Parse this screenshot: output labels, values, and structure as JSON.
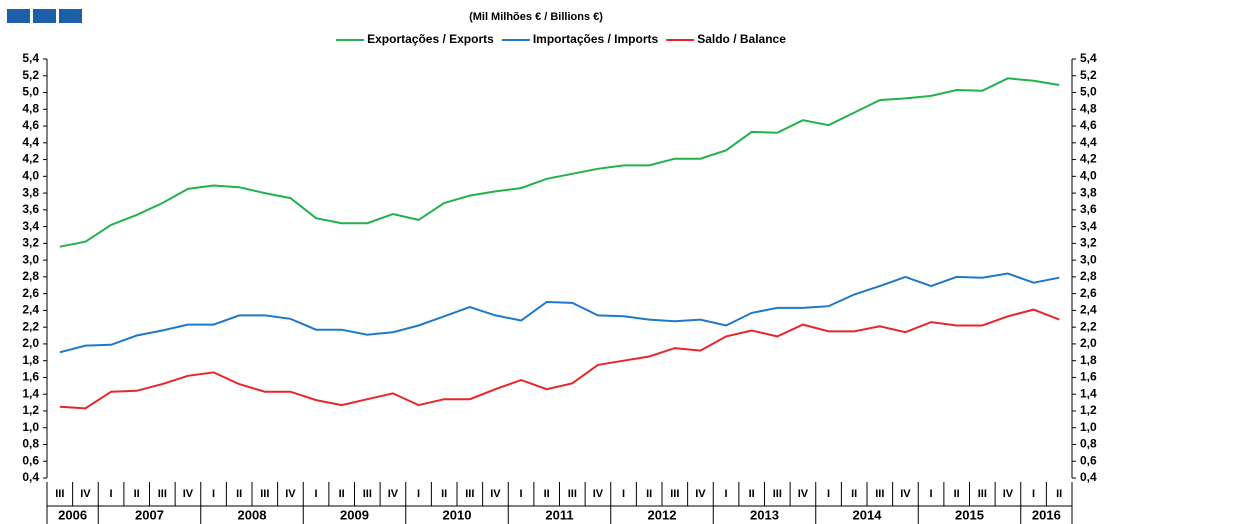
{
  "chart_data": {
    "type": "line",
    "title": "(Mil Milhões € / Billions €)",
    "x": [
      "III",
      "IV",
      "I",
      "II",
      "III",
      "IV",
      "I",
      "II",
      "III",
      "IV",
      "I",
      "II",
      "III",
      "IV",
      "I",
      "II",
      "III",
      "IV",
      "I",
      "II",
      "III",
      "IV",
      "I",
      "II",
      "III",
      "IV",
      "I",
      "II",
      "III",
      "IV",
      "I",
      "II",
      "III",
      "IV",
      "I",
      "II",
      "III",
      "IV",
      "I",
      "II"
    ],
    "years": [
      "2006",
      "2007",
      "2008",
      "2009",
      "2010",
      "2011",
      "2012",
      "2013",
      "2014",
      "2015",
      "2016"
    ],
    "series": [
      {
        "name": "Exportações / Exports",
        "color": "#22b24c",
        "values": [
          3.16,
          3.22,
          3.42,
          3.54,
          3.68,
          3.85,
          3.89,
          3.87,
          3.8,
          3.74,
          3.5,
          3.44,
          3.44,
          3.55,
          3.48,
          3.68,
          3.77,
          3.82,
          3.86,
          3.97,
          4.03,
          4.09,
          4.13,
          4.13,
          4.21,
          4.21,
          4.31,
          4.53,
          4.52,
          4.67,
          4.61,
          4.76,
          4.91,
          4.93,
          4.96,
          5.03,
          5.02,
          5.17,
          5.14,
          5.09
        ]
      },
      {
        "name": "Importações / Imports",
        "color": "#1f78c8",
        "values": [
          1.9,
          1.98,
          1.99,
          2.1,
          2.16,
          2.23,
          2.23,
          2.34,
          2.34,
          2.3,
          2.17,
          2.17,
          2.11,
          2.14,
          2.22,
          2.33,
          2.44,
          2.34,
          2.28,
          2.5,
          2.49,
          2.34,
          2.33,
          2.29,
          2.27,
          2.29,
          2.22,
          2.37,
          2.43,
          2.43,
          2.45,
          2.59,
          2.69,
          2.8,
          2.69,
          2.8,
          2.79,
          2.84,
          2.73,
          2.79
        ]
      },
      {
        "name": "Saldo / Balance",
        "color": "#e8262a",
        "values": [
          1.25,
          1.23,
          1.43,
          1.44,
          1.52,
          1.62,
          1.66,
          1.52,
          1.43,
          1.43,
          1.33,
          1.27,
          1.34,
          1.41,
          1.27,
          1.34,
          1.34,
          1.46,
          1.57,
          1.46,
          1.53,
          1.75,
          1.8,
          1.85,
          1.95,
          1.92,
          2.09,
          2.16,
          2.09,
          2.23,
          2.15,
          2.15,
          2.21,
          2.14,
          2.26,
          2.22,
          2.22,
          2.33,
          2.41,
          2.29
        ]
      }
    ],
    "ylim": [
      0.4,
      5.4
    ],
    "yticks": [
      {
        "value": 0.4,
        "label": "0,4"
      },
      {
        "value": 0.6,
        "label": "0,6"
      },
      {
        "value": 0.8,
        "label": "0,8"
      },
      {
        "value": 1.0,
        "label": "1,0"
      },
      {
        "value": 1.2,
        "label": "1,2"
      },
      {
        "value": 1.4,
        "label": "1,4"
      },
      {
        "value": 1.6,
        "label": "1,6"
      },
      {
        "value": 1.8,
        "label": "1,8"
      },
      {
        "value": 2.0,
        "label": "2,0"
      },
      {
        "value": 2.2,
        "label": "2,2"
      },
      {
        "value": 2.4,
        "label": "2,4"
      },
      {
        "value": 2.6,
        "label": "2,6"
      },
      {
        "value": 2.8,
        "label": "2,8"
      },
      {
        "value": 3.0,
        "label": "3,0"
      },
      {
        "value": 3.2,
        "label": "3,2"
      },
      {
        "value": 3.4,
        "label": "3,4"
      },
      {
        "value": 3.6,
        "label": "3,6"
      },
      {
        "value": 3.8,
        "label": "3,8"
      },
      {
        "value": 4.0,
        "label": "4,0"
      },
      {
        "value": 4.2,
        "label": "4,2"
      },
      {
        "value": 4.4,
        "label": "4,4"
      },
      {
        "value": 4.6,
        "label": "4,6"
      },
      {
        "value": 4.8,
        "label": "4,8"
      },
      {
        "value": 5.0,
        "label": "5,0"
      },
      {
        "value": 5.2,
        "label": "5,2"
      },
      {
        "value": 5.4,
        "label": "5,4"
      }
    ],
    "y2lim": [
      0.4,
      5.4
    ],
    "y2ticks": [
      {
        "value": 0.4,
        "label": "0,4"
      },
      {
        "value": 0.6,
        "label": "0,6"
      },
      {
        "value": 0.8,
        "label": "0,8"
      },
      {
        "value": 1.0,
        "label": "1,0"
      },
      {
        "value": 1.2,
        "label": "1,2"
      },
      {
        "value": 1.4,
        "label": "1,4"
      },
      {
        "value": 1.6,
        "label": "1,6"
      },
      {
        "value": 1.8,
        "label": "1,8"
      },
      {
        "value": 2.0,
        "label": "2,0"
      },
      {
        "value": 2.2,
        "label": "2,2"
      },
      {
        "value": 2.4,
        "label": "2,4"
      },
      {
        "value": 2.6,
        "label": "2,6"
      },
      {
        "value": 2.8,
        "label": "2,8"
      },
      {
        "value": 3.0,
        "label": "3,0"
      },
      {
        "value": 3.2,
        "label": "3,2"
      },
      {
        "value": 3.4,
        "label": "3,4"
      },
      {
        "value": 3.6,
        "label": "3,6"
      },
      {
        "value": 3.8,
        "label": "3,8"
      },
      {
        "value": 4.0,
        "label": "4,0"
      },
      {
        "value": 4.2,
        "label": "4,2"
      },
      {
        "value": 4.4,
        "label": "4,4"
      },
      {
        "value": 4.6,
        "label": "4,6"
      },
      {
        "value": 4.8,
        "label": "4,8"
      },
      {
        "value": 5.0,
        "label": "5,0"
      },
      {
        "value": 5.2,
        "label": "5,2"
      },
      {
        "value": 5.4,
        "label": "5,4"
      }
    ],
    "legend": "top",
    "grid": false
  }
}
